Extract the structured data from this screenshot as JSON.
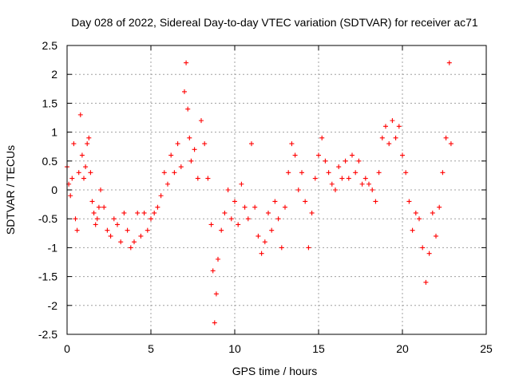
{
  "chart_data": {
    "type": "scatter",
    "title": "Day 028 of 2022, Sidereal Day-to-day VTEC variation (SDTVAR) for receiver ac71",
    "xlabel": "GPS time / hours",
    "ylabel": "SDTVAR / TECUs",
    "xlim": [
      0,
      25
    ],
    "ylim": [
      -2.5,
      2.5
    ],
    "xticks": [
      0,
      5,
      10,
      15,
      20,
      25
    ],
    "xtick_labels": [
      "0",
      "5",
      "10",
      "15",
      "20",
      "25"
    ],
    "yticks": [
      -2.5,
      -2,
      -1.5,
      -1,
      -0.5,
      0,
      0.5,
      1,
      1.5,
      2,
      2.5
    ],
    "ytick_labels": [
      "-2.5",
      "-2",
      "-1.5",
      "-1",
      "-0.5",
      "0",
      "0.5",
      "1",
      "1.5",
      "2",
      "2.5"
    ],
    "grid": true,
    "marker": "+",
    "color": "#ff0000",
    "series": [
      {
        "name": "SDTVAR",
        "x": [
          0.0,
          0.1,
          0.2,
          0.3,
          0.4,
          0.5,
          0.6,
          0.7,
          0.8,
          0.9,
          1.0,
          1.1,
          1.2,
          1.3,
          1.4,
          1.5,
          1.6,
          1.7,
          1.8,
          1.9,
          2.0,
          2.2,
          2.4,
          2.6,
          2.8,
          3.0,
          3.2,
          3.4,
          3.6,
          3.8,
          4.0,
          4.2,
          4.4,
          4.6,
          4.8,
          5.0,
          5.2,
          5.4,
          5.6,
          5.8,
          6.0,
          6.2,
          6.4,
          6.6,
          6.8,
          7.0,
          7.1,
          7.2,
          7.3,
          7.4,
          7.6,
          7.8,
          8.0,
          8.2,
          8.4,
          8.6,
          8.7,
          8.8,
          8.9,
          9.0,
          9.2,
          9.4,
          9.6,
          9.8,
          10.0,
          10.2,
          10.4,
          10.6,
          10.8,
          11.0,
          11.2,
          11.4,
          11.6,
          11.8,
          12.0,
          12.2,
          12.4,
          12.6,
          12.8,
          13.0,
          13.2,
          13.4,
          13.6,
          13.8,
          14.0,
          14.2,
          14.4,
          14.6,
          14.8,
          15.0,
          15.2,
          15.4,
          15.6,
          15.8,
          16.0,
          16.2,
          16.4,
          16.6,
          16.8,
          17.0,
          17.2,
          17.4,
          17.6,
          17.8,
          18.0,
          18.2,
          18.4,
          18.6,
          18.8,
          19.0,
          19.2,
          19.4,
          19.6,
          19.8,
          20.0,
          20.2,
          20.4,
          20.6,
          20.8,
          21.0,
          21.2,
          21.4,
          21.6,
          21.8,
          22.0,
          22.2,
          22.4,
          22.6,
          22.8,
          22.9
        ],
        "y": [
          0.4,
          0.1,
          -0.1,
          0.2,
          0.8,
          -0.5,
          -0.7,
          0.3,
          1.3,
          0.6,
          0.2,
          0.4,
          0.8,
          0.9,
          0.3,
          -0.2,
          -0.4,
          -0.6,
          -0.5,
          -0.3,
          0.0,
          -0.3,
          -0.7,
          -0.8,
          -0.5,
          -0.6,
          -0.9,
          -0.4,
          -0.7,
          -1.0,
          -0.9,
          -0.4,
          -0.8,
          -0.4,
          -0.7,
          -0.5,
          -0.4,
          -0.3,
          -0.1,
          0.3,
          0.1,
          0.6,
          0.3,
          0.8,
          0.4,
          1.7,
          2.2,
          1.4,
          0.9,
          0.5,
          0.7,
          0.2,
          1.2,
          0.8,
          0.2,
          -0.6,
          -1.4,
          -2.3,
          -1.8,
          -1.2,
          -0.7,
          -0.4,
          0.0,
          -0.5,
          -0.2,
          -0.6,
          0.1,
          -0.3,
          -0.5,
          0.8,
          -0.3,
          -0.8,
          -1.1,
          -0.9,
          -0.4,
          -0.7,
          -0.2,
          -0.5,
          -1.0,
          -0.3,
          0.3,
          0.8,
          0.6,
          0.0,
          0.3,
          -0.2,
          -1.0,
          -0.4,
          0.2,
          0.6,
          0.9,
          0.5,
          0.3,
          0.1,
          0.0,
          0.4,
          0.2,
          0.5,
          0.2,
          0.6,
          0.3,
          0.5,
          0.1,
          0.2,
          0.1,
          0.0,
          -0.2,
          0.3,
          0.9,
          1.1,
          0.8,
          1.2,
          0.9,
          1.1,
          0.6,
          0.3,
          -0.2,
          -0.7,
          -0.4,
          -0.5,
          -1.0,
          -1.6,
          -1.1,
          -0.4,
          -0.8,
          -0.3,
          0.3,
          0.9,
          2.2,
          0.8
        ]
      }
    ]
  }
}
